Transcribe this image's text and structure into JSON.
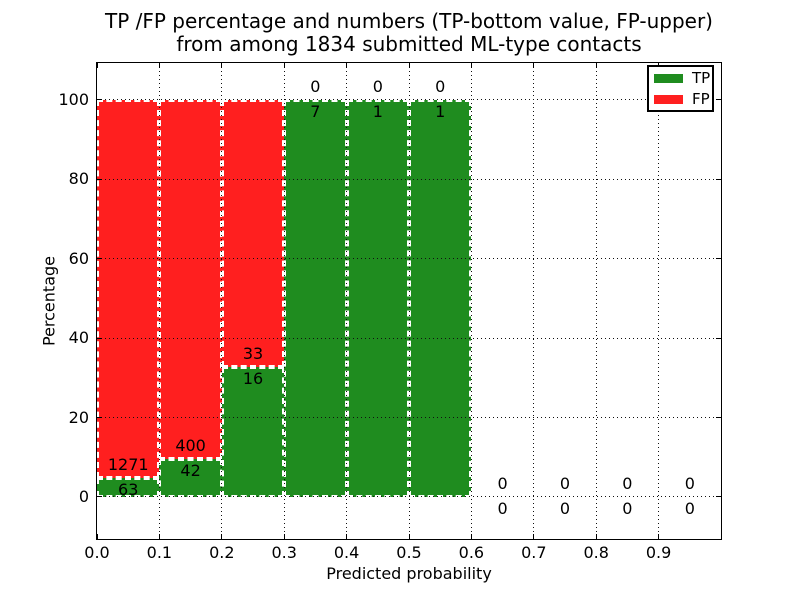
{
  "title": {
    "line1": "TP /FP percentage and numbers (TP-bottom value, FP-upper)",
    "line2": "from among 1834 submitted ML-type contacts"
  },
  "chart_data": {
    "type": "bar",
    "stacked": true,
    "title": "TP /FP percentage and numbers (TP-bottom value, FP-upper) from among 1834 submitted ML-type contacts",
    "xlabel": "Predicted probability",
    "ylabel": "Percentage",
    "total_contacts": 1834,
    "bin_width": 0.1,
    "bin_starts": [
      0.0,
      0.1,
      0.2,
      0.3,
      0.4,
      0.5,
      0.6,
      0.7,
      0.8,
      0.9
    ],
    "series": [
      {
        "name": "TP",
        "color": "#1f8c1f",
        "counts": [
          63,
          42,
          16,
          7,
          1,
          1,
          0,
          0,
          0,
          0
        ]
      },
      {
        "name": "FP",
        "color": "#ff1f1f",
        "counts": [
          1271,
          400,
          33,
          0,
          0,
          0,
          0,
          0,
          0,
          0
        ]
      }
    ],
    "tp_percent_of_bin": [
      4.7,
      9.5,
      32.7,
      100.0,
      100.0,
      100.0,
      null,
      null,
      null,
      null
    ],
    "xticks": [
      "0.0",
      "0.1",
      "0.2",
      "0.3",
      "0.4",
      "0.5",
      "0.6",
      "0.7",
      "0.8",
      "0.9"
    ],
    "yticks": [
      "0",
      "20",
      "40",
      "60",
      "80",
      "100"
    ],
    "ytick_values": [
      0,
      20,
      40,
      60,
      80,
      100
    ],
    "xlim": [
      0.0,
      1.0
    ],
    "ylim": [
      -10.6,
      109.3
    ],
    "grid": "dotted",
    "legend": {
      "position": "upper right",
      "entries": [
        "TP",
        "FP"
      ]
    }
  }
}
